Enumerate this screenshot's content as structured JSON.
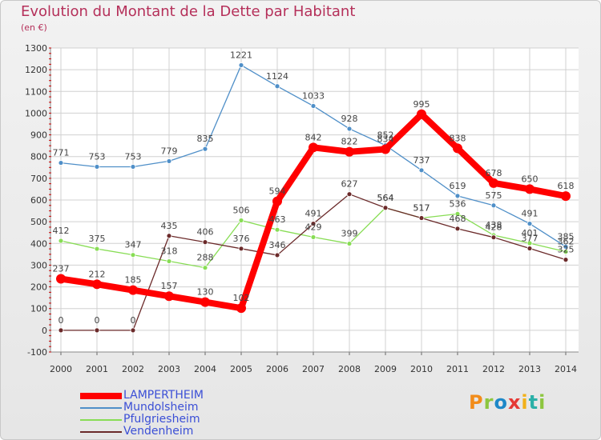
{
  "chart_data": {
    "type": "line",
    "title": "Evolution du Montant de la Dette par Habitant",
    "subtitle": "(en €)",
    "x": [
      "2000",
      "2001",
      "2002",
      "2003",
      "2004",
      "2005",
      "2006",
      "2007",
      "2008",
      "2009",
      "2010",
      "2011",
      "2012",
      "2013",
      "2014"
    ],
    "ylim": [
      -100,
      1300
    ],
    "yticks": [
      -100,
      0,
      100,
      200,
      300,
      400,
      500,
      600,
      700,
      800,
      900,
      1000,
      1100,
      1200,
      1300
    ],
    "grid": true,
    "legend_position": "bottom-left",
    "series": [
      {
        "name": "LAMPERTHEIM",
        "color": "#ff0000",
        "values": [
          237,
          212,
          185,
          157,
          130,
          102,
          594,
          842,
          822,
          834,
          995,
          838,
          678,
          650,
          618
        ]
      },
      {
        "name": "Mundolsheim",
        "color": "#4f8fc8",
        "values": [
          771,
          753,
          753,
          779,
          835,
          1221,
          1124,
          1033,
          928,
          852,
          737,
          619,
          575,
          491,
          385
        ]
      },
      {
        "name": "Pfulgriesheim",
        "color": "#88dd55",
        "values": [
          412,
          375,
          347,
          318,
          288,
          506,
          463,
          429,
          399,
          564,
          517,
          536,
          438,
          401,
          362
        ]
      },
      {
        "name": "Vendenheim",
        "color": "#6b2a2a",
        "values": [
          0,
          0,
          0,
          435,
          406,
          376,
          346,
          491,
          627,
          564,
          517,
          468,
          428,
          377,
          325
        ]
      }
    ]
  },
  "logo": {
    "text": "Proxiti"
  }
}
